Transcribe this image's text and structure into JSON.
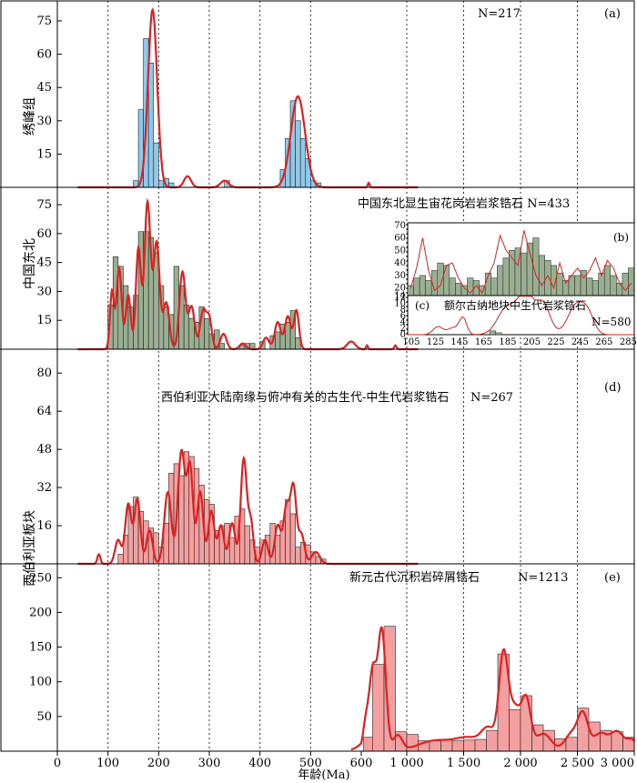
{
  "figure": {
    "xlabel": "年龄(Ma)",
    "x_ticks": [
      "0",
      "100",
      "200",
      "300",
      "400",
      "500",
      "600",
      "1 000",
      "1 500",
      "2 000",
      "2 500",
      "3 000"
    ],
    "groups": [
      {
        "label": "绣峰组",
        "panel": "a"
      },
      {
        "label": "中国东北",
        "panel": "b"
      },
      {
        "label": "西伯利亚板块",
        "panel": "de"
      }
    ],
    "colors": {
      "kde": "#e02020",
      "a_fill": "#8ec8ea",
      "b_fill": "#9aaf92",
      "de_fill": "#f4a0a0",
      "bar_edge": "#222222"
    }
  },
  "chart_data": [
    {
      "id": "a",
      "type": "bar",
      "panel_letter": "(a)",
      "n_label": "N=217",
      "title": "",
      "ylabel": "",
      "xlabel": "年龄(Ma)",
      "y_ticks": [
        15,
        30,
        45,
        60,
        75
      ],
      "ylim": [
        0,
        84
      ],
      "bin_width": 10,
      "bins": [
        [
          150,
          3
        ],
        [
          160,
          35
        ],
        [
          170,
          67
        ],
        [
          180,
          56
        ],
        [
          190,
          20
        ],
        [
          200,
          3
        ],
        [
          210,
          4
        ],
        [
          220,
          2
        ],
        [
          330,
          3
        ],
        [
          440,
          8
        ],
        [
          450,
          22
        ],
        [
          460,
          39
        ],
        [
          470,
          30
        ],
        [
          480,
          22
        ],
        [
          490,
          13
        ],
        [
          500,
          3
        ],
        [
          510,
          2
        ]
      ],
      "kde_peaks": [
        [
          188,
          80,
          9
        ],
        [
          257,
          5,
          7
        ],
        [
          330,
          3,
          8
        ],
        [
          475,
          41,
          14
        ],
        [
          665,
          2,
          8
        ]
      ]
    },
    {
      "id": "b",
      "type": "bar",
      "panel_letter": "",
      "n_label": "中国东北显生宙花岗岩岩浆锆石 N=433",
      "title": "中国东北显生宙花岗岩岩浆锆石",
      "ylabel": "",
      "xlabel": "年龄(Ma)",
      "y_ticks": [
        15,
        30,
        45,
        60,
        75
      ],
      "ylim": [
        0,
        84
      ],
      "bin_width": 10,
      "bins": [
        [
          100,
          23
        ],
        [
          110,
          48
        ],
        [
          120,
          43
        ],
        [
          130,
          33
        ],
        [
          140,
          22
        ],
        [
          150,
          28
        ],
        [
          160,
          61
        ],
        [
          170,
          61
        ],
        [
          180,
          58
        ],
        [
          190,
          50
        ],
        [
          200,
          33
        ],
        [
          210,
          22
        ],
        [
          220,
          18
        ],
        [
          230,
          43
        ],
        [
          240,
          33
        ],
        [
          250,
          23
        ],
        [
          260,
          16
        ],
        [
          270,
          14
        ],
        [
          280,
          22
        ],
        [
          290,
          16
        ],
        [
          300,
          8
        ],
        [
          310,
          10
        ],
        [
          320,
          3
        ],
        [
          360,
          2
        ],
        [
          370,
          3
        ],
        [
          380,
          3
        ],
        [
          400,
          4
        ],
        [
          420,
          7
        ],
        [
          430,
          9
        ],
        [
          440,
          13
        ],
        [
          450,
          14
        ],
        [
          460,
          20
        ],
        [
          470,
          6
        ]
      ],
      "kde_peaks": [
        [
          108,
          30,
          4
        ],
        [
          122,
          42,
          5
        ],
        [
          140,
          28,
          5
        ],
        [
          160,
          52,
          5
        ],
        [
          178,
          76,
          6
        ],
        [
          196,
          55,
          6
        ],
        [
          215,
          24,
          6
        ],
        [
          247,
          40,
          6
        ],
        [
          265,
          22,
          6
        ],
        [
          288,
          20,
          6
        ],
        [
          300,
          15,
          5
        ],
        [
          328,
          8,
          6
        ],
        [
          366,
          3,
          6
        ],
        [
          412,
          6,
          6
        ],
        [
          435,
          14,
          6
        ],
        [
          455,
          17,
          6
        ],
        [
          472,
          20,
          5
        ],
        [
          580,
          4,
          8
        ],
        [
          650,
          2,
          8
        ],
        [
          900,
          2,
          10
        ]
      ]
    },
    {
      "id": "b_inset",
      "type": "bar",
      "panel_letter": "(b)",
      "y_ticks": [
        14,
        20,
        30,
        40,
        50,
        60,
        70
      ],
      "ylim": [
        14,
        72
      ],
      "x_range": [
        105,
        290
      ],
      "bin_width": 5,
      "values": [
        22,
        28,
        30,
        26,
        34,
        40,
        38,
        28,
        24,
        22,
        28,
        26,
        22,
        32,
        28,
        38,
        44,
        50,
        52,
        48,
        56,
        60,
        46,
        42,
        38,
        32,
        26,
        30,
        30,
        34,
        28,
        26,
        32,
        38,
        30,
        24,
        32,
        36
      ],
      "kde": [
        20,
        36,
        60,
        34,
        18,
        22,
        38,
        40,
        28,
        20,
        16,
        22,
        16,
        30,
        40,
        62,
        50,
        44,
        38,
        66,
        48,
        30,
        22,
        30,
        20,
        40,
        24,
        30,
        36,
        28,
        34,
        44,
        30,
        42,
        36,
        24,
        18,
        24
      ]
    },
    {
      "id": "c_inset",
      "type": "line",
      "panel_letter": "(c)",
      "title": "额尔古纳地块中生代岩浆锆石",
      "n_label": "N=580",
      "y_ticks": [
        0,
        2,
        4,
        6,
        8,
        10,
        12
      ],
      "ylim": [
        0,
        12.5
      ],
      "x_ticks": [
        "105",
        "125",
        "145",
        "165",
        "185",
        "205",
        "225",
        "245",
        "265",
        "285"
      ],
      "x_range": [
        102,
        290
      ],
      "bins": [
        [
          170,
          1.2
        ],
        [
          175,
          0.6
        ]
      ],
      "kde_peaks": [
        [
          127,
          2.5,
          4
        ],
        [
          140,
          2.2,
          5
        ],
        [
          148,
          5,
          3
        ],
        [
          185,
          9,
          8
        ],
        [
          200,
          12,
          6
        ],
        [
          214,
          10,
          6
        ],
        [
          242,
          9.5,
          7
        ],
        [
          252,
          5,
          5
        ]
      ]
    },
    {
      "id": "d",
      "type": "bar",
      "panel_letter": "(d)",
      "title": "西伯利亚大陆南缘与俯冲有关的古生代-中生代岩浆锆石",
      "n_label": "N=267",
      "y_ticks": [
        16,
        32,
        48,
        64,
        80
      ],
      "ylim": [
        0,
        90
      ],
      "bin_width": 10,
      "bins": [
        [
          120,
          4
        ],
        [
          130,
          12
        ],
        [
          140,
          24
        ],
        [
          150,
          28
        ],
        [
          160,
          22
        ],
        [
          170,
          18
        ],
        [
          180,
          15
        ],
        [
          190,
          13
        ],
        [
          200,
          7
        ],
        [
          210,
          17
        ],
        [
          220,
          38
        ],
        [
          230,
          42
        ],
        [
          240,
          37
        ],
        [
          250,
          47
        ],
        [
          260,
          45
        ],
        [
          270,
          40
        ],
        [
          280,
          33
        ],
        [
          290,
          27
        ],
        [
          300,
          25
        ],
        [
          310,
          14
        ],
        [
          320,
          16
        ],
        [
          330,
          17
        ],
        [
          340,
          11
        ],
        [
          350,
          20
        ],
        [
          360,
          23
        ],
        [
          370,
          16
        ],
        [
          380,
          10
        ],
        [
          390,
          7
        ],
        [
          400,
          10
        ],
        [
          410,
          12
        ],
        [
          420,
          17
        ],
        [
          430,
          12
        ],
        [
          440,
          18
        ],
        [
          450,
          27
        ],
        [
          460,
          21
        ],
        [
          470,
          7
        ],
        [
          480,
          9
        ],
        [
          490,
          8
        ],
        [
          500,
          5
        ],
        [
          510,
          3
        ],
        [
          520,
          2
        ]
      ],
      "kde_peaks": [
        [
          82,
          4,
          3
        ],
        [
          120,
          10,
          6
        ],
        [
          140,
          25,
          6
        ],
        [
          158,
          27,
          6
        ],
        [
          182,
          14,
          6
        ],
        [
          218,
          30,
          7
        ],
        [
          245,
          47,
          7
        ],
        [
          262,
          40,
          6
        ],
        [
          282,
          30,
          6
        ],
        [
          304,
          22,
          6
        ],
        [
          323,
          16,
          6
        ],
        [
          345,
          17,
          6
        ],
        [
          368,
          44,
          6
        ],
        [
          382,
          17,
          5
        ],
        [
          410,
          10,
          6
        ],
        [
          435,
          16,
          6
        ],
        [
          452,
          23,
          6
        ],
        [
          466,
          32,
          6
        ],
        [
          482,
          12,
          6
        ],
        [
          510,
          5,
          8
        ]
      ]
    },
    {
      "id": "e",
      "type": "bar",
      "panel_letter": "(e)",
      "title": "新元古代沉积岩碎屑锆石",
      "n_label": "N=1213",
      "y_ticks": [
        50,
        100,
        150,
        200,
        250
      ],
      "ylim": [
        0,
        270
      ],
      "bin_width": 100,
      "bins": [
        [
          620,
          20
        ],
        [
          700,
          125
        ],
        [
          800,
          180
        ],
        [
          900,
          28
        ],
        [
          1000,
          24
        ],
        [
          1100,
          15
        ],
        [
          1200,
          15
        ],
        [
          1300,
          17
        ],
        [
          1400,
          15
        ],
        [
          1500,
          16
        ],
        [
          1600,
          17
        ],
        [
          1700,
          30
        ],
        [
          1800,
          140
        ],
        [
          1900,
          60
        ],
        [
          2000,
          80
        ],
        [
          2100,
          38
        ],
        [
          2200,
          30
        ],
        [
          2300,
          18
        ],
        [
          2400,
          20
        ],
        [
          2500,
          62
        ],
        [
          2600,
          42
        ],
        [
          2700,
          30
        ],
        [
          2800,
          28
        ],
        [
          2900,
          20
        ]
      ],
      "kde_peaks": [
        [
          640,
          40,
          25
        ],
        [
          700,
          110,
          30
        ],
        [
          780,
          175,
          35
        ],
        [
          920,
          22,
          40
        ],
        [
          1250,
          15,
          150
        ],
        [
          1550,
          18,
          120
        ],
        [
          1720,
          28,
          60
        ],
        [
          1850,
          135,
          40
        ],
        [
          1950,
          60,
          50
        ],
        [
          2050,
          70,
          40
        ],
        [
          2200,
          25,
          70
        ],
        [
          2450,
          25,
          60
        ],
        [
          2550,
          50,
          45
        ],
        [
          2700,
          25,
          60
        ],
        [
          2850,
          28,
          60
        ],
        [
          2980,
          15,
          40
        ]
      ]
    }
  ]
}
